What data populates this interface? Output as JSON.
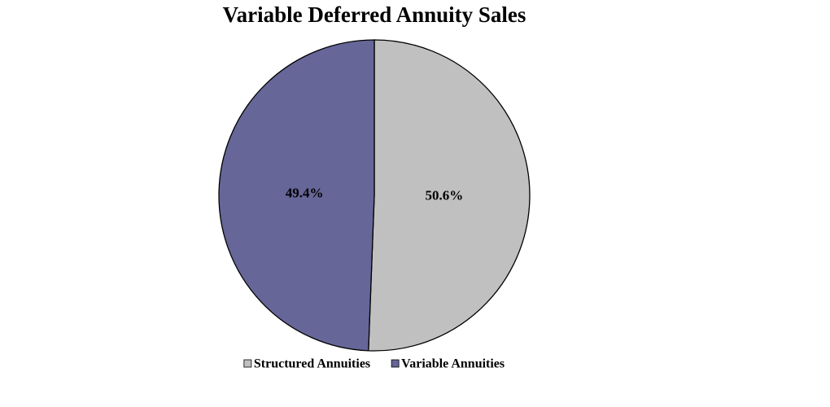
{
  "chart_data": {
    "type": "pie",
    "title": "Variable Deferred Annuity Sales",
    "categories": [
      "Structured Annuities",
      "Variable Annuities"
    ],
    "values": [
      50.6,
      49.4
    ],
    "value_labels": [
      "50.6%",
      "49.4%"
    ],
    "colors": [
      "#c0c0c0",
      "#666699"
    ],
    "legend": "bottom"
  }
}
